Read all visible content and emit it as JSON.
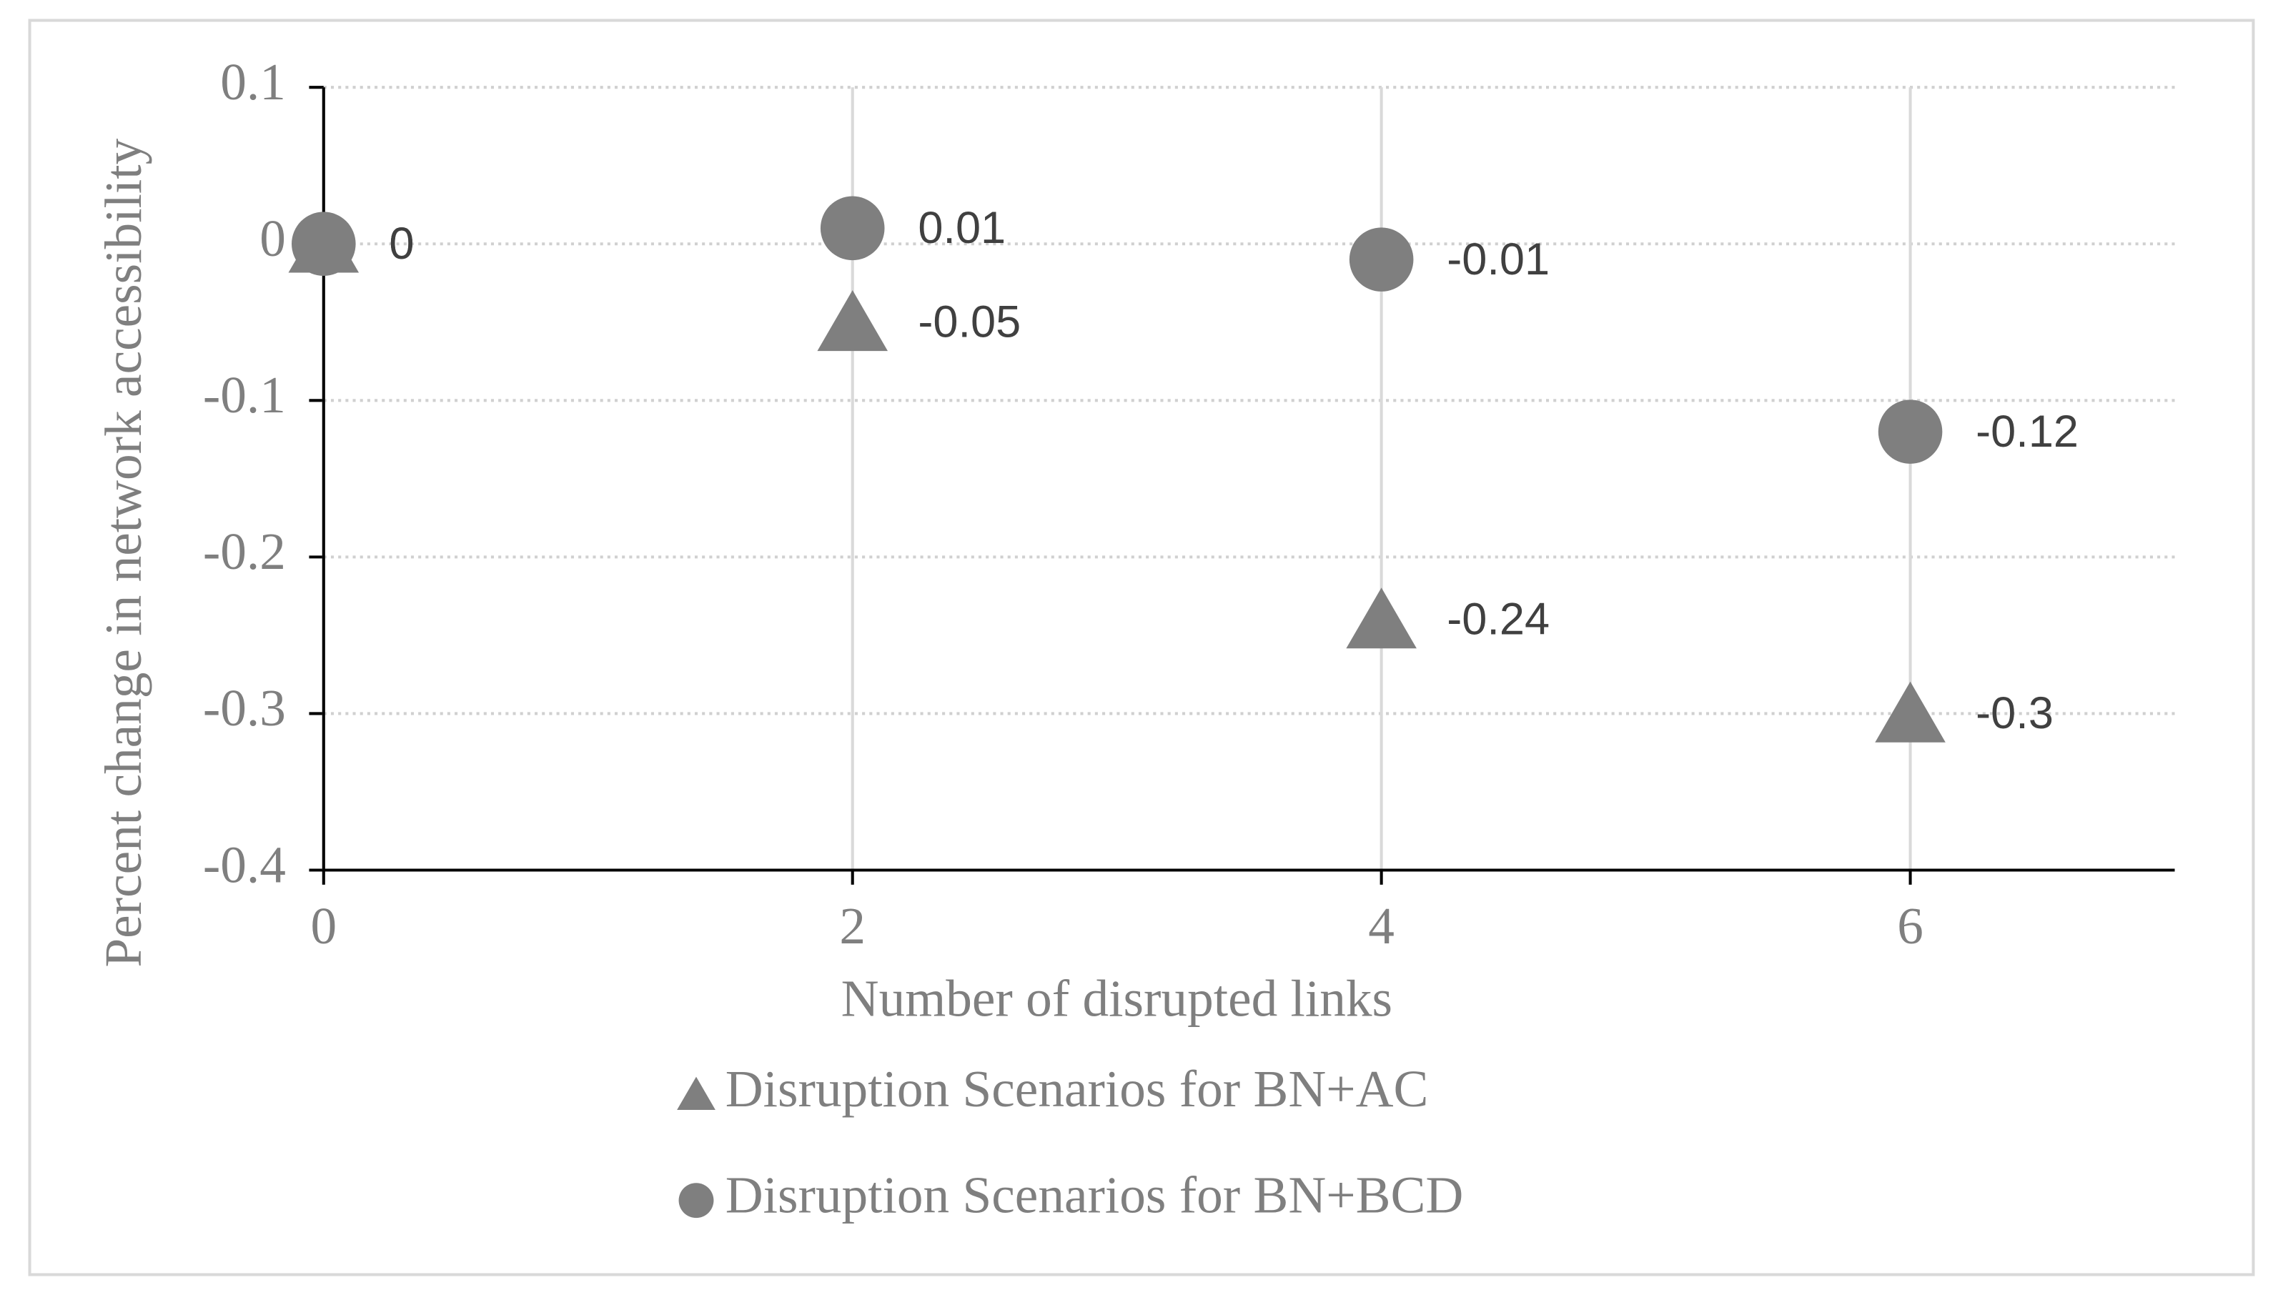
{
  "chart_data": {
    "type": "scatter",
    "x_label": "Number of disrupted links",
    "y_label": "Percent change in network accessibility",
    "xlim": [
      0,
      7
    ],
    "xticks": [
      0,
      2,
      4,
      6
    ],
    "ylim": [
      -0.4,
      0.1
    ],
    "yticks": [
      -0.4,
      -0.3,
      -0.2,
      -0.1,
      0,
      0.1
    ],
    "grid": true,
    "legend": "bottom",
    "series": [
      {
        "name": "Disruption Scenarios for BN+AC",
        "color": "#7f7f7f",
        "marker": "triangle",
        "x": [
          0,
          2,
          4,
          6
        ],
        "values": [
          0,
          -0.05,
          -0.24,
          -0.3
        ]
      },
      {
        "name": "Disruption Scenarios for BN+BCD",
        "color": "#7f7f7f",
        "marker": "circle",
        "x": [
          0,
          2,
          4,
          6
        ],
        "values": [
          0,
          0.01,
          -0.01,
          -0.12
        ]
      }
    ]
  }
}
